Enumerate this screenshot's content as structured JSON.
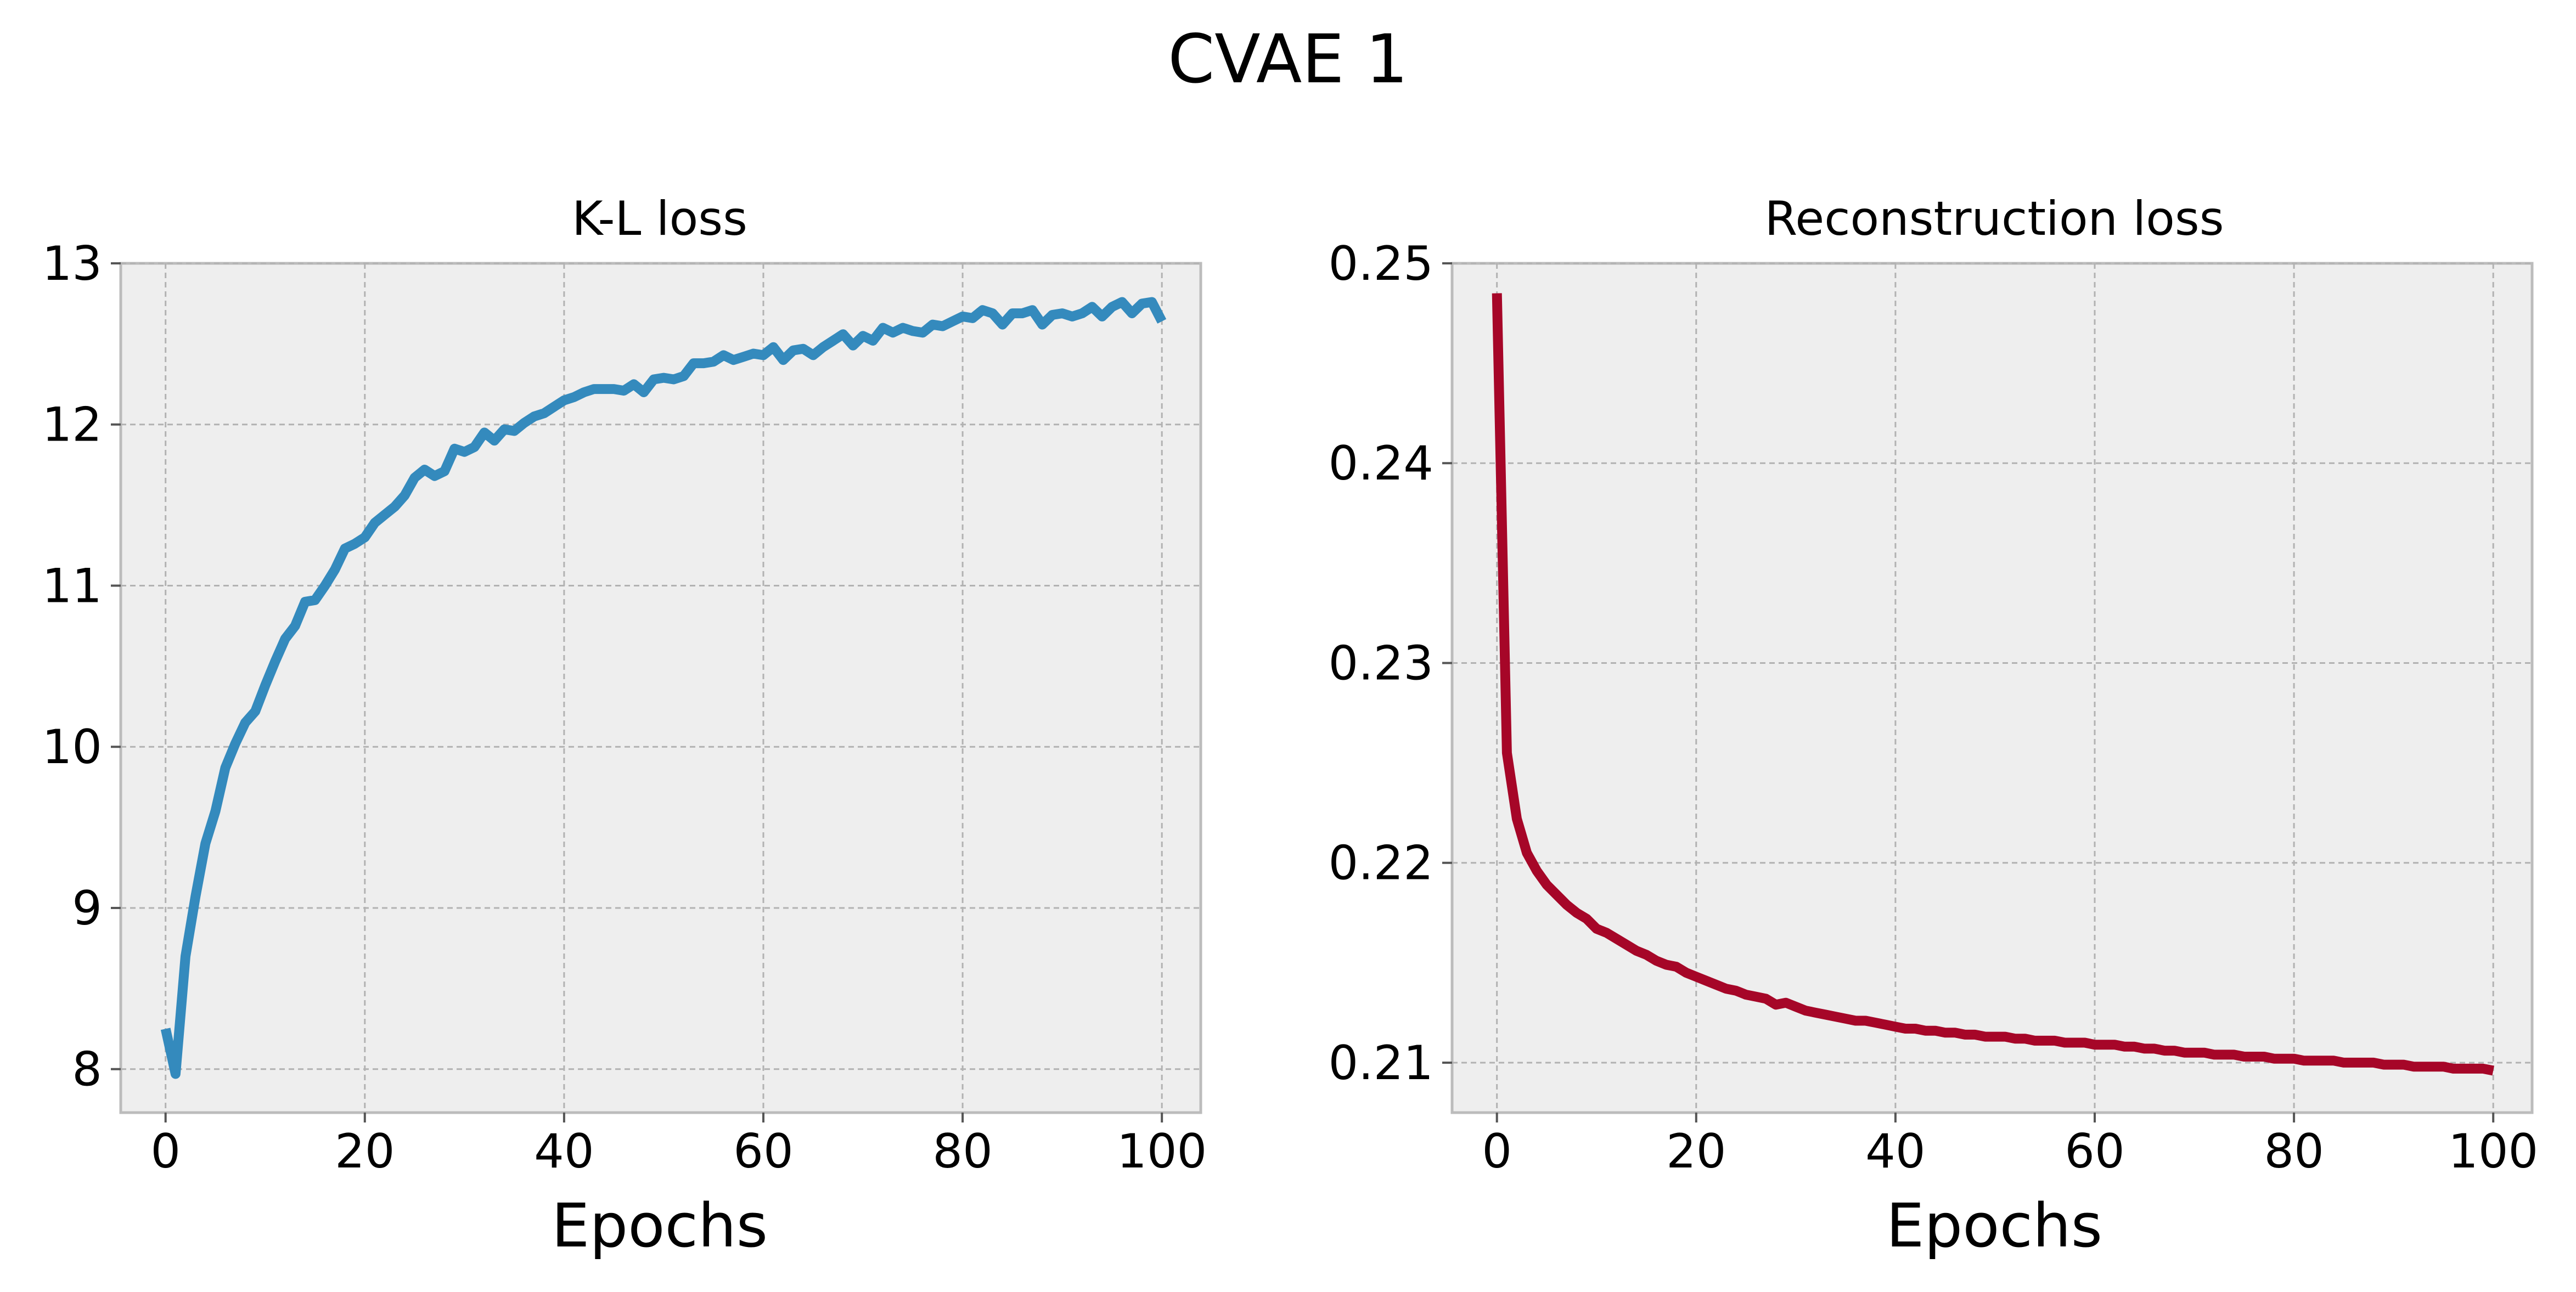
{
  "figure": {
    "title": "CVAE 1"
  },
  "chart_data": [
    {
      "type": "line",
      "title": "K-L loss",
      "xlabel": "Epochs",
      "ylabel": "",
      "xlim": [
        -4.5,
        103.9
      ],
      "ylim": [
        7.73,
        13.0
      ],
      "xticks": [
        0,
        20,
        40,
        60,
        80,
        100
      ],
      "yticks": [
        8,
        9,
        10,
        11,
        12,
        13
      ],
      "grid": true,
      "color": "#348abd",
      "series": [
        {
          "x": [
            0,
            1,
            2,
            3,
            4,
            5,
            6,
            7,
            8,
            9,
            10,
            11,
            12,
            13,
            14,
            15,
            16,
            17,
            18,
            19,
            20,
            21,
            22,
            23,
            24,
            25,
            26,
            27,
            28,
            29,
            30,
            31,
            32,
            33,
            34,
            35,
            36,
            37,
            38,
            39,
            40,
            41,
            42,
            43,
            44,
            45,
            46,
            47,
            48,
            49,
            50,
            51,
            52,
            53,
            54,
            55,
            56,
            57,
            58,
            59,
            60,
            61,
            62,
            63,
            64,
            65,
            66,
            67,
            68,
            69,
            70,
            71,
            72,
            73,
            74,
            75,
            76,
            77,
            78,
            79,
            80,
            81,
            82,
            83,
            84,
            85,
            86,
            87,
            88,
            89,
            90,
            91,
            92,
            93,
            94,
            95,
            96,
            97,
            98,
            99,
            100
          ],
          "values": [
            8.25,
            7.97,
            8.7,
            9.07,
            9.4,
            9.6,
            9.87,
            10.02,
            10.15,
            10.22,
            10.38,
            10.53,
            10.67,
            10.75,
            10.9,
            10.91,
            11.0,
            11.1,
            11.23,
            11.26,
            11.3,
            11.39,
            11.44,
            11.49,
            11.56,
            11.67,
            11.72,
            11.68,
            11.71,
            11.85,
            11.83,
            11.86,
            11.95,
            11.9,
            11.97,
            11.96,
            12.01,
            12.05,
            12.07,
            12.11,
            12.15,
            12.17,
            12.2,
            12.22,
            12.22,
            12.22,
            12.21,
            12.25,
            12.2,
            12.28,
            12.29,
            12.28,
            12.3,
            12.38,
            12.38,
            12.39,
            12.43,
            12.4,
            12.42,
            12.44,
            12.43,
            12.48,
            12.4,
            12.46,
            12.47,
            12.43,
            12.48,
            12.52,
            12.56,
            12.49,
            12.55,
            12.52,
            12.6,
            12.57,
            12.6,
            12.58,
            12.57,
            12.62,
            12.61,
            12.64,
            12.67,
            12.66,
            12.71,
            12.69,
            12.62,
            12.69,
            12.69,
            12.71,
            12.62,
            12.68,
            12.69,
            12.67,
            12.69,
            12.73,
            12.67,
            12.73,
            12.76,
            12.69,
            12.75,
            12.76,
            12.64
          ]
        }
      ]
    },
    {
      "type": "line",
      "title": "Reconstruction loss",
      "xlabel": "Epochs",
      "ylabel": "",
      "xlim": [
        -4.5,
        103.9
      ],
      "ylim": [
        0.2075,
        0.25
      ],
      "xticks": [
        0,
        20,
        40,
        60,
        80,
        100
      ],
      "yticks": [
        0.21,
        0.22,
        0.23,
        0.24,
        0.25
      ],
      "grid": true,
      "color": "#a60628",
      "series": [
        {
          "x": [
            0,
            1,
            2,
            3,
            4,
            5,
            6,
            7,
            8,
            9,
            10,
            11,
            12,
            13,
            14,
            15,
            16,
            17,
            18,
            19,
            20,
            21,
            22,
            23,
            24,
            25,
            26,
            27,
            28,
            29,
            30,
            31,
            32,
            33,
            34,
            35,
            36,
            37,
            38,
            39,
            40,
            41,
            42,
            43,
            44,
            45,
            46,
            47,
            48,
            49,
            50,
            51,
            52,
            53,
            54,
            55,
            56,
            57,
            58,
            59,
            60,
            61,
            62,
            63,
            64,
            65,
            66,
            67,
            68,
            69,
            70,
            71,
            72,
            73,
            74,
            75,
            76,
            77,
            78,
            79,
            80,
            81,
            82,
            83,
            84,
            85,
            86,
            87,
            88,
            89,
            90,
            91,
            92,
            93,
            94,
            95,
            96,
            97,
            98,
            99,
            100
          ],
          "values": [
            0.2485,
            0.2255,
            0.2222,
            0.2205,
            0.2196,
            0.2189,
            0.2184,
            0.2179,
            0.2175,
            0.2172,
            0.2167,
            0.2165,
            0.2162,
            0.2159,
            0.2156,
            0.2154,
            0.2151,
            0.2149,
            0.2148,
            0.2145,
            0.2143,
            0.2141,
            0.2139,
            0.2137,
            0.2136,
            0.2134,
            0.2133,
            0.2132,
            0.2129,
            0.213,
            0.2128,
            0.2126,
            0.2125,
            0.2124,
            0.2123,
            0.2122,
            0.2121,
            0.2121,
            0.212,
            0.2119,
            0.2118,
            0.2117,
            0.2117,
            0.2116,
            0.2116,
            0.2115,
            0.2115,
            0.2114,
            0.2114,
            0.2113,
            0.2113,
            0.2113,
            0.2112,
            0.2112,
            0.2111,
            0.2111,
            0.2111,
            0.211,
            0.211,
            0.211,
            0.2109,
            0.2109,
            0.2109,
            0.2108,
            0.2108,
            0.2107,
            0.2107,
            0.2106,
            0.2106,
            0.2105,
            0.2105,
            0.2105,
            0.2104,
            0.2104,
            0.2104,
            0.2103,
            0.2103,
            0.2103,
            0.2102,
            0.2102,
            0.2102,
            0.2101,
            0.2101,
            0.2101,
            0.2101,
            0.21,
            0.21,
            0.21,
            0.21,
            0.2099,
            0.2099,
            0.2099,
            0.2098,
            0.2098,
            0.2098,
            0.2098,
            0.2097,
            0.2097,
            0.2097,
            0.2097,
            0.2096
          ]
        }
      ]
    }
  ]
}
